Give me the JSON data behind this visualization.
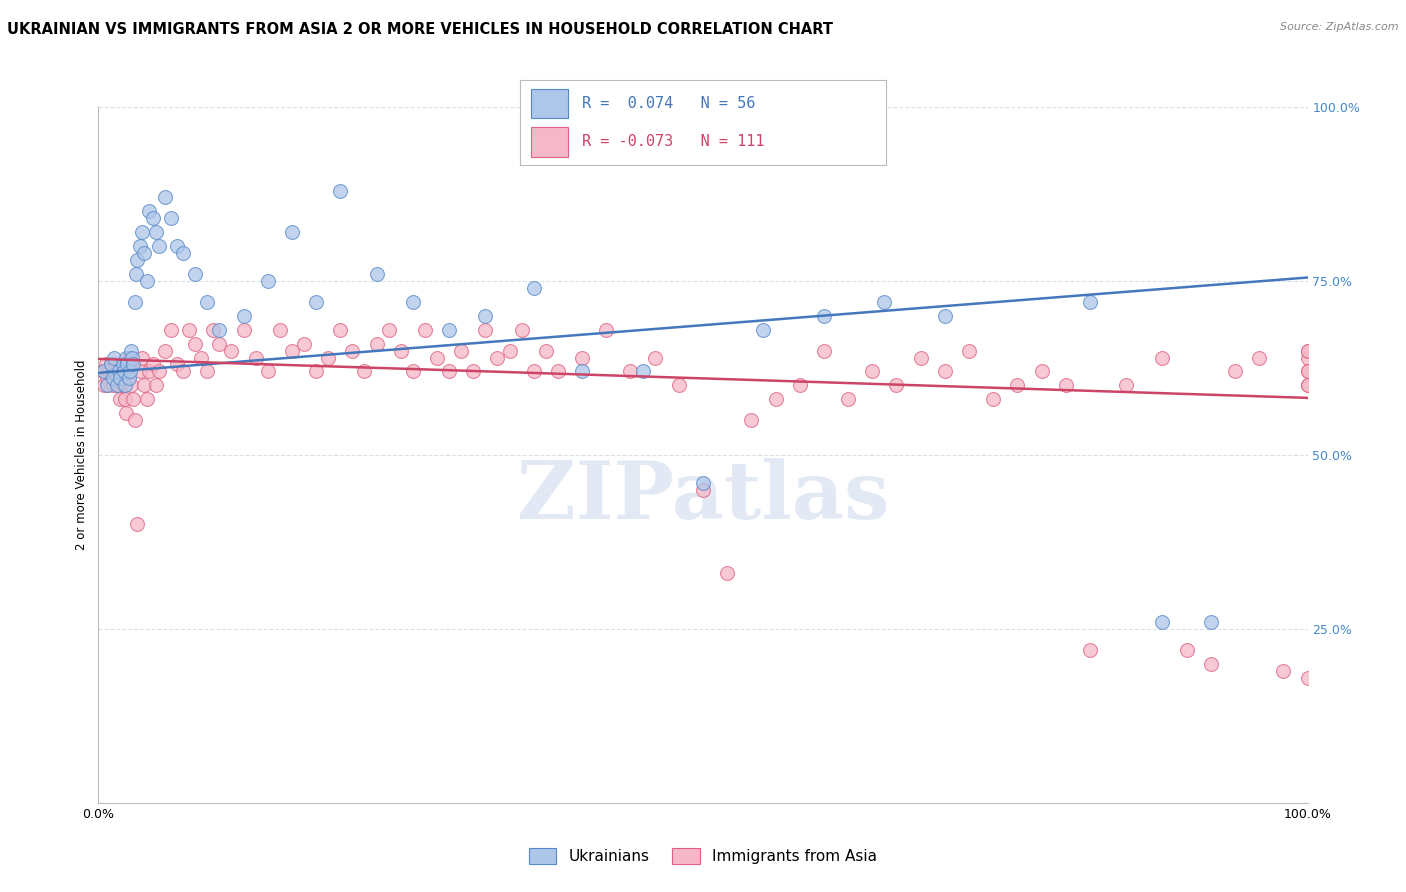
{
  "title": "UKRAINIAN VS IMMIGRANTS FROM ASIA 2 OR MORE VEHICLES IN HOUSEHOLD CORRELATION CHART",
  "source": "Source: ZipAtlas.com",
  "ylabel": "2 or more Vehicles in Household",
  "xlim": [
    0,
    1
  ],
  "ylim": [
    0,
    1
  ],
  "blue_R": 0.074,
  "blue_N": 56,
  "pink_R": -0.073,
  "pink_N": 111,
  "blue_color": "#aec6e8",
  "pink_color": "#f4b8c8",
  "blue_edge_color": "#5588c8",
  "pink_edge_color": "#e06080",
  "blue_line_color": "#4477bb",
  "pink_line_color": "#cc4466",
  "blue_label": "Ukrainians",
  "pink_label": "Immigrants from Asia",
  "watermark": "ZIPatlas",
  "background_color": "#ffffff",
  "grid_color": "#d8e0ec",
  "title_fontsize": 10.5,
  "source_fontsize": 8,
  "legend_fontsize": 11,
  "axis_label_fontsize": 8.5,
  "tick_fontsize": 9,
  "right_tick_color": "#4488cc",
  "blue_x": [
    0.005,
    0.007,
    0.01,
    0.012,
    0.013,
    0.015,
    0.017,
    0.018,
    0.02,
    0.021,
    0.022,
    0.023,
    0.024,
    0.025,
    0.026,
    0.027,
    0.028,
    0.029,
    0.03,
    0.031,
    0.032,
    0.034,
    0.036,
    0.038,
    0.04,
    0.042,
    0.045,
    0.048,
    0.05,
    0.055,
    0.06,
    0.065,
    0.07,
    0.08,
    0.09,
    0.1,
    0.12,
    0.14,
    0.16,
    0.18,
    0.2,
    0.23,
    0.26,
    0.29,
    0.32,
    0.36,
    0.4,
    0.45,
    0.5,
    0.55,
    0.6,
    0.65,
    0.7,
    0.82,
    0.88,
    0.92
  ],
  "blue_y": [
    0.62,
    0.6,
    0.63,
    0.61,
    0.64,
    0.6,
    0.62,
    0.61,
    0.63,
    0.62,
    0.6,
    0.64,
    0.63,
    0.61,
    0.62,
    0.65,
    0.64,
    0.63,
    0.72,
    0.76,
    0.78,
    0.8,
    0.82,
    0.79,
    0.75,
    0.85,
    0.84,
    0.82,
    0.8,
    0.87,
    0.84,
    0.8,
    0.79,
    0.76,
    0.72,
    0.68,
    0.7,
    0.75,
    0.82,
    0.72,
    0.88,
    0.76,
    0.72,
    0.68,
    0.7,
    0.74,
    0.62,
    0.62,
    0.46,
    0.68,
    0.7,
    0.72,
    0.7,
    0.72,
    0.26,
    0.26
  ],
  "pink_x": [
    0.004,
    0.005,
    0.006,
    0.007,
    0.008,
    0.009,
    0.01,
    0.011,
    0.012,
    0.013,
    0.014,
    0.015,
    0.016,
    0.017,
    0.018,
    0.019,
    0.02,
    0.021,
    0.022,
    0.023,
    0.024,
    0.025,
    0.026,
    0.027,
    0.028,
    0.029,
    0.03,
    0.032,
    0.034,
    0.036,
    0.038,
    0.04,
    0.042,
    0.045,
    0.048,
    0.05,
    0.055,
    0.06,
    0.065,
    0.07,
    0.075,
    0.08,
    0.085,
    0.09,
    0.095,
    0.1,
    0.11,
    0.12,
    0.13,
    0.14,
    0.15,
    0.16,
    0.17,
    0.18,
    0.19,
    0.2,
    0.21,
    0.22,
    0.23,
    0.24,
    0.25,
    0.26,
    0.27,
    0.28,
    0.29,
    0.3,
    0.31,
    0.32,
    0.33,
    0.34,
    0.35,
    0.36,
    0.37,
    0.38,
    0.4,
    0.42,
    0.44,
    0.46,
    0.48,
    0.5,
    0.52,
    0.54,
    0.56,
    0.58,
    0.6,
    0.62,
    0.64,
    0.66,
    0.68,
    0.7,
    0.72,
    0.74,
    0.76,
    0.78,
    0.8,
    0.82,
    0.85,
    0.88,
    0.9,
    0.92,
    0.94,
    0.96,
    0.98,
    1.0,
    1.0,
    1.0,
    1.0,
    1.0,
    1.0,
    1.0,
    1.0
  ],
  "pink_y": [
    0.62,
    0.6,
    0.63,
    0.61,
    0.6,
    0.62,
    0.63,
    0.61,
    0.6,
    0.62,
    0.63,
    0.61,
    0.6,
    0.62,
    0.58,
    0.61,
    0.6,
    0.62,
    0.58,
    0.56,
    0.63,
    0.64,
    0.62,
    0.6,
    0.63,
    0.58,
    0.55,
    0.4,
    0.62,
    0.64,
    0.6,
    0.58,
    0.62,
    0.63,
    0.6,
    0.62,
    0.65,
    0.68,
    0.63,
    0.62,
    0.68,
    0.66,
    0.64,
    0.62,
    0.68,
    0.66,
    0.65,
    0.68,
    0.64,
    0.62,
    0.68,
    0.65,
    0.66,
    0.62,
    0.64,
    0.68,
    0.65,
    0.62,
    0.66,
    0.68,
    0.65,
    0.62,
    0.68,
    0.64,
    0.62,
    0.65,
    0.62,
    0.68,
    0.64,
    0.65,
    0.68,
    0.62,
    0.65,
    0.62,
    0.64,
    0.68,
    0.62,
    0.64,
    0.6,
    0.45,
    0.33,
    0.55,
    0.58,
    0.6,
    0.65,
    0.58,
    0.62,
    0.6,
    0.64,
    0.62,
    0.65,
    0.58,
    0.6,
    0.62,
    0.6,
    0.22,
    0.6,
    0.64,
    0.22,
    0.2,
    0.62,
    0.64,
    0.19,
    0.64,
    0.65,
    0.62,
    0.6,
    0.18,
    0.62,
    0.65,
    0.6
  ]
}
